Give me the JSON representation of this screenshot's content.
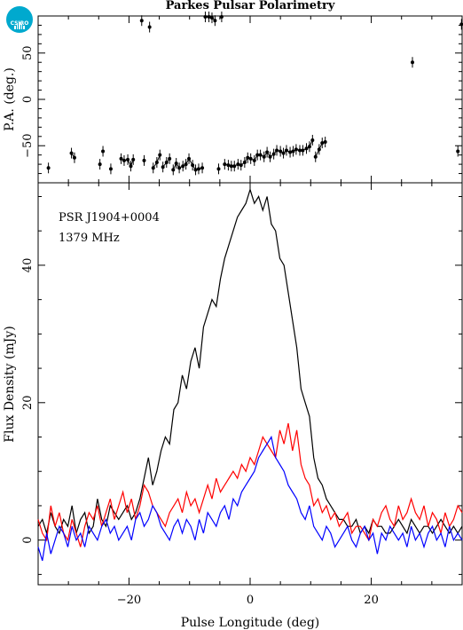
{
  "title": "Parkes Pulsar Polarimetry",
  "logo_text": "CSIRO",
  "colors": {
    "total": "#000000",
    "linear": "#ff0000",
    "circular": "#0000ff"
  },
  "chart_data": [
    {
      "type": "scatter",
      "panel": "top",
      "ylabel": "P.A. (deg.)",
      "xlim": [
        -35,
        35
      ],
      "ylim": [
        -90,
        90
      ],
      "yticks": [
        50,
        0,
        -50
      ],
      "ytick_labels": [
        "50",
        "0",
        "−50"
      ],
      "x": [
        -33.3,
        -29.5,
        -29.0,
        -24.8,
        -24.3,
        -23.0,
        -21.3,
        -20.8,
        -20.2,
        -19.7,
        -19.3,
        -17.9,
        -17.5,
        -16.6,
        -16.0,
        -15.4,
        -14.9,
        -14.4,
        -13.8,
        -13.3,
        -12.7,
        -12.2,
        -11.7,
        -11.1,
        -10.6,
        -10.1,
        -9.5,
        -9.0,
        -8.5,
        -7.9,
        -7.4,
        -6.8,
        -6.3,
        -5.8,
        -5.2,
        -4.7,
        -4.2,
        -3.6,
        -3.1,
        -2.6,
        -2.0,
        -1.5,
        -0.9,
        -0.4,
        0.1,
        0.7,
        1.2,
        1.7,
        2.3,
        2.8,
        3.3,
        3.9,
        4.4,
        5.0,
        5.5,
        6.0,
        6.6,
        7.1,
        7.6,
        8.2,
        8.7,
        9.3,
        9.8,
        10.3,
        10.8,
        11.4,
        11.9,
        12.4,
        26.8,
        34.3,
        34.9
      ],
      "y": [
        -74,
        -58,
        -63,
        -70,
        -56,
        -75,
        -64,
        -66,
        -65,
        -72,
        -65,
        85,
        -66,
        78,
        -74,
        -68,
        -60,
        -73,
        -68,
        -64,
        -76,
        -69,
        -74,
        -72,
        -70,
        -64,
        -71,
        -76,
        -75,
        -74,
        89,
        89,
        88,
        85,
        -75,
        89,
        -70,
        -71,
        -72,
        -72,
        -70,
        -71,
        -68,
        -63,
        -64,
        -66,
        -60,
        -60,
        -62,
        -57,
        -62,
        -59,
        -55,
        -56,
        -58,
        -55,
        -57,
        -56,
        -54,
        -55,
        -55,
        -53,
        -51,
        -44,
        -62,
        -54,
        -47,
        -46,
        40,
        -56,
        81
      ]
    },
    {
      "type": "line",
      "panel": "bottom",
      "ylabel": "Flux Density (mJy)",
      "xlabel": "Pulse Longitude (deg)",
      "xlim": [
        -35,
        35
      ],
      "ylim": [
        -6.5,
        52
      ],
      "xticks": [
        -20,
        0,
        20
      ],
      "xtick_labels": [
        "−20",
        "0",
        "20"
      ],
      "yticks": [
        0,
        20,
        40
      ],
      "ytick_labels": [
        "0",
        "20",
        "40"
      ],
      "annotation": [
        "PSR J1904+0004",
        "1379 MHz"
      ],
      "x": [
        -35,
        -34.3,
        -33.6,
        -32.9,
        -32.2,
        -31.5,
        -30.8,
        -30.1,
        -29.4,
        -28.7,
        -28,
        -27.3,
        -26.6,
        -25.9,
        -25.2,
        -24.5,
        -23.8,
        -23.1,
        -22.4,
        -21.7,
        -21,
        -20.3,
        -19.6,
        -18.9,
        -18.2,
        -17.5,
        -16.8,
        -16.1,
        -15.4,
        -14.7,
        -14,
        -13.3,
        -12.6,
        -11.9,
        -11.2,
        -10.5,
        -9.8,
        -9.1,
        -8.4,
        -7.7,
        -7,
        -6.3,
        -5.6,
        -4.9,
        -4.2,
        -3.5,
        -2.8,
        -2.1,
        -1.4,
        -0.7,
        0,
        0.7,
        1.4,
        2.1,
        2.8,
        3.5,
        4.2,
        4.9,
        5.6,
        6.3,
        7,
        7.7,
        8.4,
        9.1,
        9.8,
        10.5,
        11.2,
        11.9,
        12.6,
        13.3,
        14,
        14.7,
        15.4,
        16.1,
        16.8,
        17.5,
        18.2,
        18.9,
        19.6,
        20.3,
        21,
        21.7,
        22.4,
        23.1,
        23.8,
        24.5,
        25.2,
        25.9,
        26.6,
        27.3,
        28,
        28.7,
        29.4,
        30.1,
        30.8,
        31.5,
        32.2,
        32.9,
        33.6,
        34.3,
        35
      ],
      "series": [
        {
          "values": [
            2,
            3,
            1,
            4,
            2,
            1,
            3,
            2,
            5,
            1,
            3,
            4,
            1,
            2,
            6,
            3,
            2,
            5,
            4,
            3,
            4,
            5,
            3,
            4,
            6,
            9,
            12,
            8,
            10,
            13,
            15,
            14,
            19,
            20,
            24,
            22,
            26,
            28,
            25,
            31,
            33,
            35,
            34,
            38,
            41,
            43,
            45,
            47,
            48,
            49,
            51,
            49,
            50,
            48,
            50,
            46,
            45,
            41,
            40,
            36,
            32,
            28,
            22,
            20,
            18,
            12,
            9,
            8,
            6,
            5,
            4,
            3,
            3,
            2,
            2,
            3,
            1,
            2,
            1,
            3,
            2,
            2,
            1,
            1,
            2,
            3,
            2,
            1,
            3,
            2,
            1,
            2,
            2,
            1,
            2,
            3,
            2,
            1,
            2,
            1,
            2
          ]
        },
        {
          "values": [
            3,
            1,
            0,
            5,
            2,
            4,
            1,
            0,
            3,
            1,
            -1,
            2,
            4,
            3,
            5,
            2,
            4,
            6,
            3,
            5,
            7,
            4,
            6,
            3,
            5,
            8,
            7,
            5,
            4,
            3,
            2,
            4,
            5,
            6,
            4,
            7,
            5,
            6,
            4,
            6,
            8,
            6,
            9,
            7,
            8,
            9,
            10,
            9,
            11,
            10,
            12,
            11,
            13,
            15,
            14,
            13,
            12,
            16,
            14,
            17,
            13,
            16,
            11,
            9,
            8,
            5,
            6,
            4,
            5,
            3,
            4,
            2,
            3,
            4,
            1,
            2,
            2,
            1,
            0,
            3,
            2,
            4,
            5,
            3,
            2,
            5,
            3,
            4,
            6,
            4,
            3,
            5,
            2,
            4,
            3,
            1,
            4,
            2,
            3,
            5,
            4
          ]
        },
        {
          "values": [
            -1,
            -3,
            1,
            -2,
            0,
            2,
            1,
            -1,
            2,
            0,
            1,
            -1,
            2,
            1,
            0,
            2,
            3,
            1,
            2,
            0,
            1,
            2,
            0,
            3,
            4,
            2,
            3,
            5,
            4,
            2,
            1,
            0,
            2,
            3,
            1,
            3,
            2,
            0,
            3,
            1,
            4,
            3,
            2,
            4,
            5,
            3,
            6,
            5,
            7,
            8,
            9,
            10,
            12,
            13,
            14,
            15,
            12,
            11,
            10,
            8,
            7,
            6,
            4,
            3,
            5,
            2,
            1,
            0,
            2,
            1,
            -1,
            0,
            1,
            2,
            0,
            -1,
            1,
            2,
            0,
            1,
            -2,
            1,
            0,
            2,
            1,
            0,
            1,
            -1,
            2,
            0,
            1,
            -1,
            1,
            2,
            0,
            1,
            -1,
            2,
            0,
            1,
            0
          ]
        }
      ]
    }
  ]
}
